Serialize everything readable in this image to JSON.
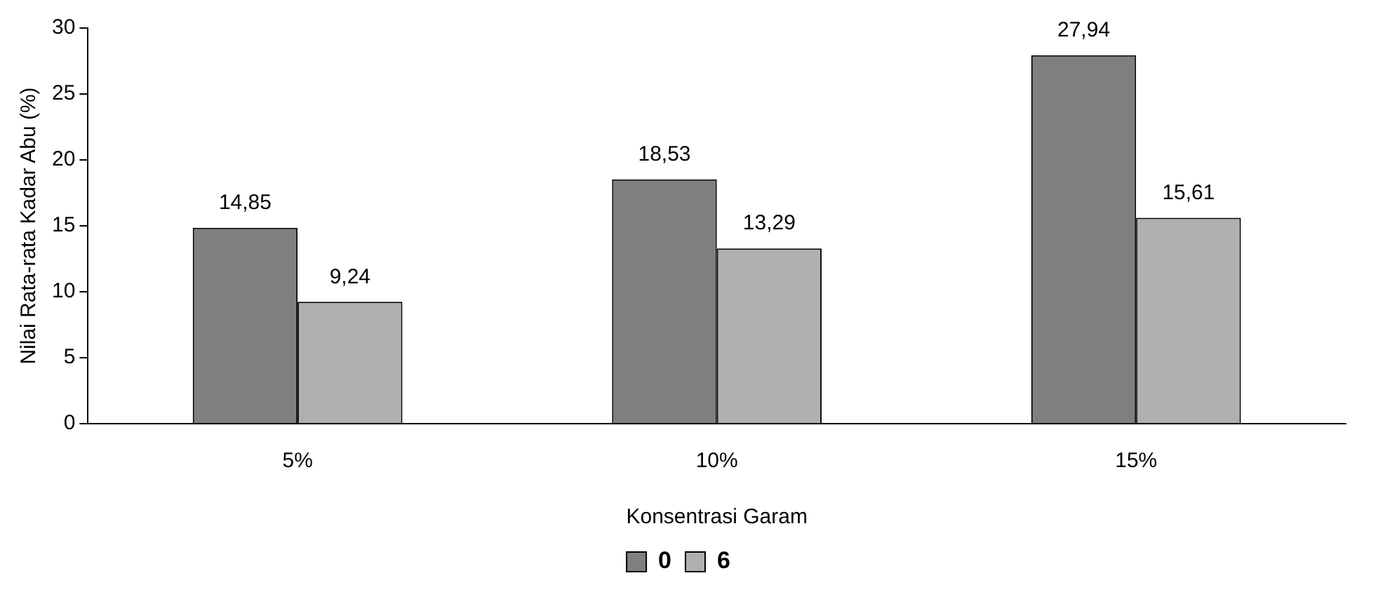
{
  "chart_data": {
    "type": "bar",
    "xlabel": "Konsentrasi Garam",
    "ylabel": "Nilai Rata-rata Kadar Abu (%)",
    "categories": [
      "5%",
      "10%",
      "15%"
    ],
    "series": [
      {
        "name": "0",
        "color": "#7f7f7f",
        "values": [
          14.85,
          18.53,
          27.94
        ],
        "value_labels": [
          "14,85",
          "18,53",
          "27,94"
        ]
      },
      {
        "name": "6",
        "color": "#b0b0b0",
        "values": [
          9.24,
          13.29,
          15.61
        ],
        "value_labels": [
          "9,24",
          "13,29",
          "15,61"
        ]
      }
    ],
    "ylim": [
      0,
      30
    ],
    "yticks": [
      0,
      5,
      10,
      15,
      20,
      25,
      30
    ],
    "grid": false,
    "legend": "bottom"
  }
}
